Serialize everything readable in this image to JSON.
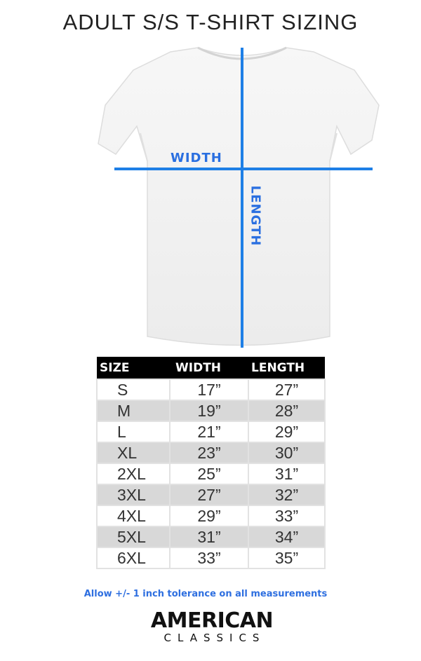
{
  "title": "ADULT S/S T-SHIRT SIZING",
  "diagram": {
    "width_label": "WIDTH",
    "length_label": "LENGTH",
    "line_color": "#1e7fe6"
  },
  "table": {
    "headers": [
      "SIZE",
      "WIDTH",
      "LENGTH"
    ],
    "rows": [
      [
        "S",
        "17”",
        "27”"
      ],
      [
        "M",
        "19”",
        "28”"
      ],
      [
        "L",
        "21”",
        "29”"
      ],
      [
        "XL",
        "23”",
        "30”"
      ],
      [
        "2XL",
        "25”",
        "31”"
      ],
      [
        "3XL",
        "27”",
        "32”"
      ],
      [
        "4XL",
        "29”",
        "33”"
      ],
      [
        "5XL",
        "31”",
        "34”"
      ],
      [
        "6XL",
        "33”",
        "35”"
      ]
    ]
  },
  "note": "Allow +/- 1 inch tolerance on all measurements",
  "brand": {
    "line1": "AMERICAN",
    "line2": "CLASSICS"
  }
}
